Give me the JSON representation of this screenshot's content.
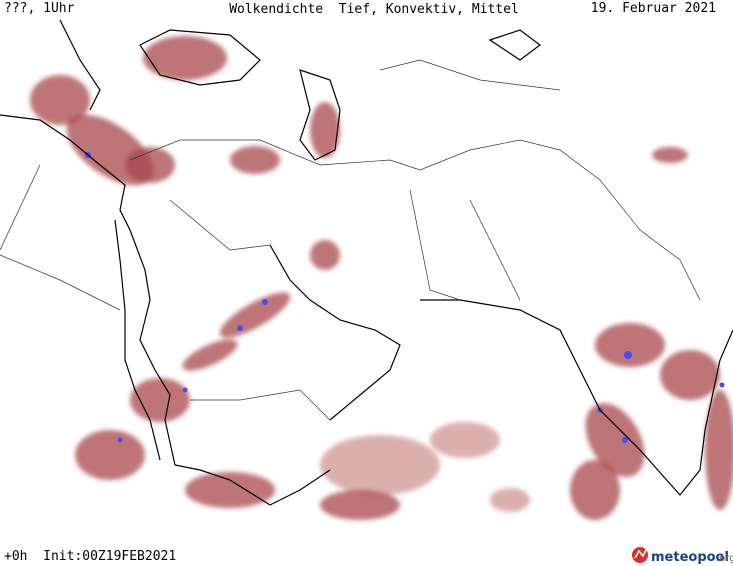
{
  "header": {
    "left": "???, 1Uhr",
    "title": "Wolkendichte  Tief, Konvektiv, Mittel",
    "date": "19. Februar 2021"
  },
  "footer": {
    "run": "+0h  Init:00Z19FEB2021",
    "logo": "meteopool",
    "logo_suffix": ".org"
  }
}
